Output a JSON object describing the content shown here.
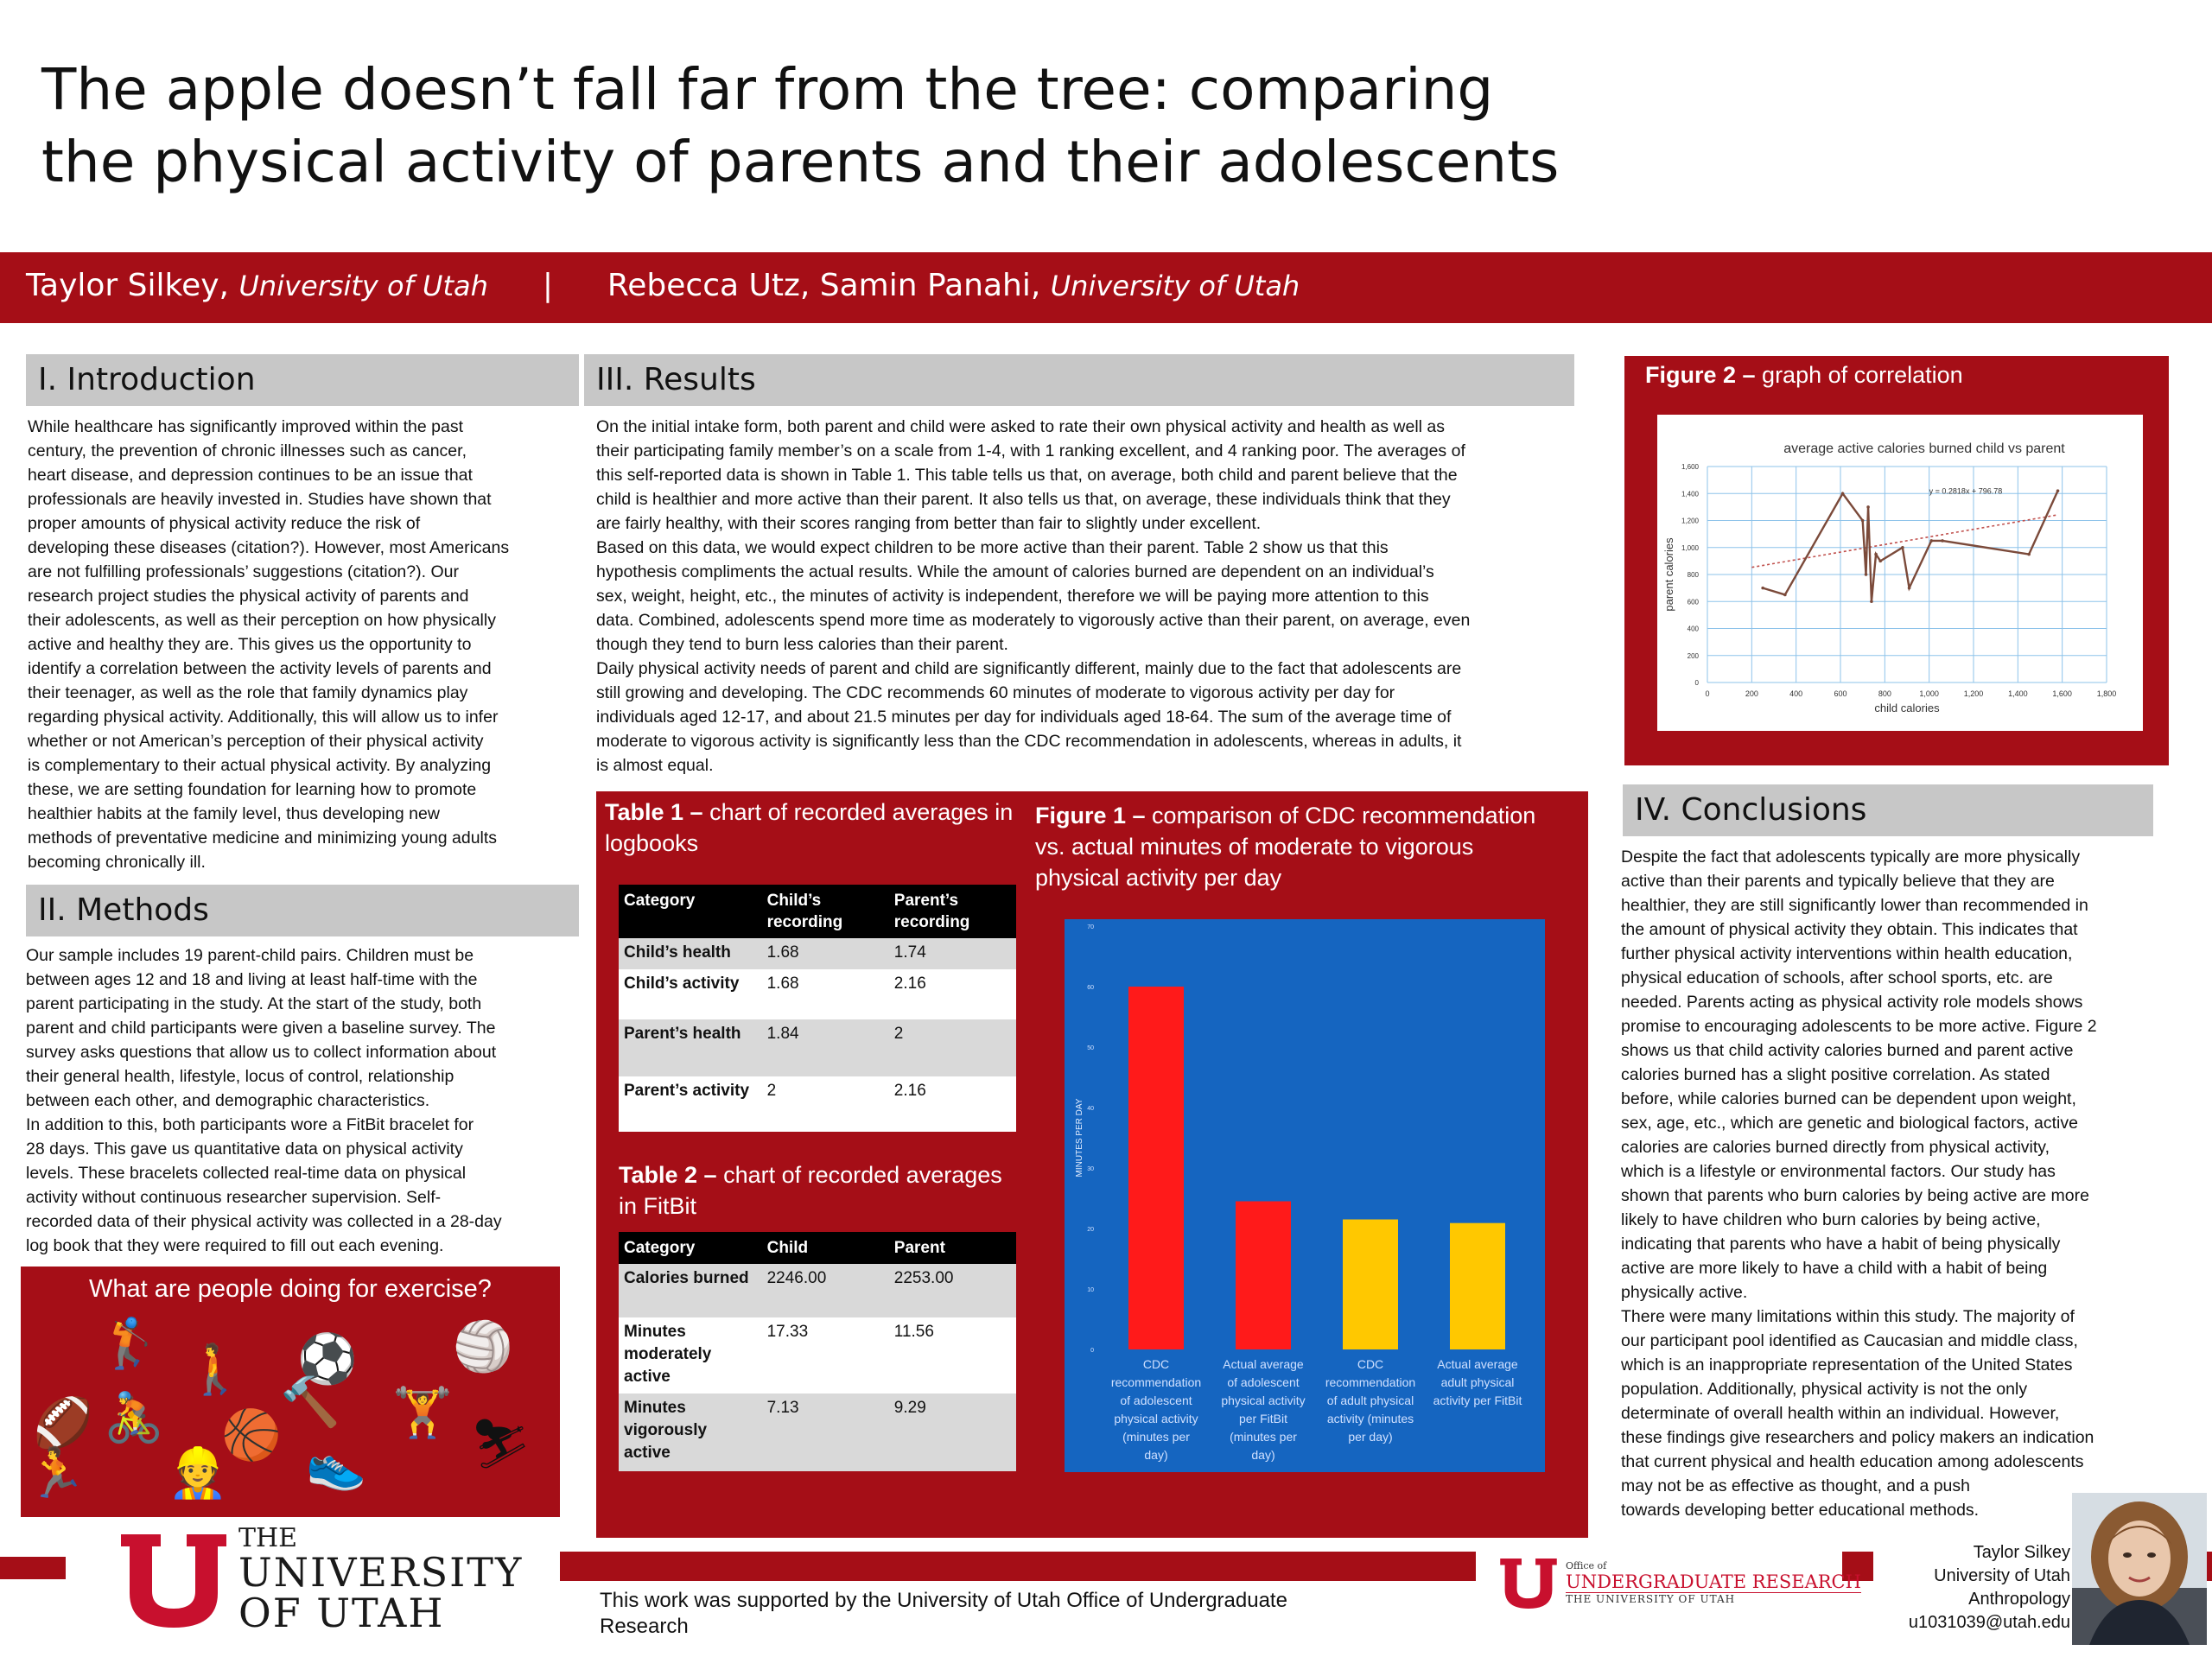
{
  "title": {
    "line1": "The apple doesn’t fall far from the tree: comparing",
    "line2": "the physical activity of parents and their adolescents"
  },
  "authors": {
    "author1_name": "Taylor Silkey,",
    "author1_affil": "University of Utah",
    "separator": "|",
    "author2_names": "Rebecca Utz, Samin Panahi,",
    "author2_affil": "University of Utah"
  },
  "introduction": {
    "heading": "I. Introduction",
    "lines": [
      "While healthcare has significantly improved within the past",
      "century, the prevention of chronic illnesses such as cancer,",
      "heart disease, and depression continues to be an issue that",
      "professionals are heavily invested in. Studies have shown that",
      "proper amounts of physical activity reduce the risk of",
      "developing these diseases (citation?). However, most Americans",
      "are not fulfilling professionals’ suggestions (citation?). Our",
      "research project studies the physical activity of parents and",
      "their adolescents, as well as their perception on how physically",
      "active and healthy they are. This gives us the opportunity to",
      "identify a correlation between the activity levels of parents and",
      "their teenager, as well as the role that family dynamics play",
      "regarding physical activity. Additionally, this will allow us to infer",
      "whether or not American’s perception of their physical activity",
      "is complementary to their actual physical activity. By analyzing",
      "these, we are setting foundation for learning how to promote",
      "healthier habits at the family level, thus developing new",
      "methods of preventative medicine and minimizing young adults",
      "becoming chronically ill."
    ]
  },
  "methods": {
    "heading": "II. Methods",
    "lines": [
      "Our sample includes 19 parent-child pairs. Children must be",
      "between ages 12 and 18 and living at least half-time with the",
      "parent participating in the study. At the start of the study, both",
      "parent and child participants were given a baseline survey. The",
      "survey asks questions that allow us to collect information about",
      "their general health, lifestyle, locus of control, relationship",
      "between each other, and demographic characteristics.",
      "In addition to this, both participants wore a FitBit bracelet for",
      "28 days. This gave us quantitative data on physical activity",
      "levels. These bracelets collected real-time data on physical",
      "activity without continuous researcher supervision. Self-",
      "recorded data of their physical activity was collected in a 28-day",
      "log book that they were required to fill out each evening."
    ]
  },
  "exercise_panel": {
    "title": "What are people doing for exercise?",
    "icons": [
      {
        "name": "football-icon",
        "glyph": "🏈"
      },
      {
        "name": "golfer-icon",
        "glyph": "🏌"
      },
      {
        "name": "walker-icon",
        "glyph": "🚶"
      },
      {
        "name": "soccer-ball-icon",
        "glyph": "⚽"
      },
      {
        "name": "volleyball-icon",
        "glyph": "🏐"
      },
      {
        "name": "cyclist-icon",
        "glyph": "🚴"
      },
      {
        "name": "basketball-icon",
        "glyph": "🏀"
      },
      {
        "name": "hammer-icon",
        "glyph": "🔨"
      },
      {
        "name": "weightlifter-icon",
        "glyph": "🏋"
      },
      {
        "name": "runner-icon",
        "glyph": "🏃"
      },
      {
        "name": "construction-worker-icon",
        "glyph": "👷"
      },
      {
        "name": "running-shoe-icon",
        "glyph": "👟"
      },
      {
        "name": "skier-icon",
        "glyph": "⛷"
      }
    ]
  },
  "results": {
    "heading": "III. Results",
    "lines": [
      "On the initial intake form, both parent and child were asked to rate their own physical activity and health as well as",
      "their participating family member’s on a scale from 1-4, with 1 ranking excellent, and 4 ranking poor. The averages of",
      "this self-reported data is shown in Table 1. This table tells us that, on average, both child and parent believe that the",
      "child is healthier and more active than their parent. It also tells us that, on average, these individuals think that they",
      "are fairly healthy, with their scores ranging from better than fair to slightly under excellent.",
      "Based on this data, we would expect children to be more active than their parent. Table 2 show us that this",
      "hypothesis compliments the actual results. While the amount of calories burned are dependent on an individual’s",
      "sex, weight, height, etc., the minutes of activity is independent, therefore we will be paying more attention to this",
      "data. Combined, adolescents spend more time as moderately to vigorously active than their parent, on average, even",
      "though they tend to burn less calories than their parent.",
      "Daily physical activity needs of parent and child are significantly different, mainly due to the fact that adolescents are",
      "still growing and developing. The CDC recommends 60 minutes of moderate to vigorous activity per day for",
      "individuals aged 12-17, and about 21.5 minutes per day for individuals aged 18-64. The sum of the average time of",
      "moderate to vigorous activity is significantly less than the CDC recommendation in adolescents, whereas in adults, it",
      "is almost equal."
    ]
  },
  "table1": {
    "title_bold": "Table 1 –",
    "title_rest": " chart of recorded averages in logbooks",
    "headers": [
      "Category",
      "Child’s recording",
      "Parent’s recording"
    ],
    "rows": [
      [
        "Child’s health",
        "1.68",
        "1.74"
      ],
      [
        "Child’s activity",
        "1.68",
        "2.16"
      ],
      [
        "Parent’s health",
        "1.84",
        "2"
      ],
      [
        "Parent’s activity",
        "2",
        "2.16"
      ]
    ]
  },
  "table2": {
    "title_bold": "Table 2 –",
    "title_rest": " chart of recorded averages in FitBit",
    "headers": [
      "Category",
      "Child",
      "Parent"
    ],
    "rows": [
      [
        "Calories burned",
        "2246.00",
        "2253.00"
      ],
      [
        "Minutes moderately active",
        "17.33",
        "11.56"
      ],
      [
        "Minutes vigorously active",
        "7.13",
        "9.29"
      ]
    ]
  },
  "figure1": {
    "title_bold": "Figure 1 –",
    "title_rest": " comparison of CDC recommendation vs. actual minutes of moderate to vigorous physical activity per day"
  },
  "figure2": {
    "title_bold": "Figure 2 –",
    "title_rest": " graph of correlation"
  },
  "chart_data": [
    {
      "type": "bar",
      "title": "",
      "ylabel": "MINUTES PER DAY",
      "xlabel": "",
      "ylim": [
        0,
        70
      ],
      "yticks": [
        0,
        10,
        20,
        30,
        40,
        50,
        60,
        70
      ],
      "grid": false,
      "categories": [
        "CDC recommendation of adolescent physical activity (minutes per day)",
        "Actual average of adolescent physical activity per FitBit (minutes per day)",
        "CDC recommendation of adult physical activity (minutes per day)",
        "Actual average adult physical activity per FitBit"
      ],
      "category_lines": [
        [
          "CDC",
          "recommendation",
          "of adolescent",
          "physical activity",
          "(minutes per",
          "day)"
        ],
        [
          "Actual average",
          "of adolescent",
          "physical activity",
          "per FitBit",
          "(minutes per",
          "day)"
        ],
        [
          "CDC",
          "recommendation",
          "of adult physical",
          "activity (minutes",
          "per day)"
        ],
        [
          "Actual average",
          "adult physical",
          "activity per FitBit"
        ]
      ],
      "values": [
        60,
        24.5,
        21.5,
        20.9
      ],
      "colors": [
        "#ff1a1a",
        "#ff1a1a",
        "#ffc800",
        "#ffc800"
      ],
      "background": "#1565c0"
    },
    {
      "type": "line",
      "title": "average active calories burned child vs parent",
      "xlabel": "child calories",
      "ylabel": "parent calories",
      "xlim": [
        0,
        1800
      ],
      "ylim": [
        0,
        1600
      ],
      "xticks": [
        0,
        200,
        400,
        600,
        800,
        1000,
        1200,
        1400,
        1600,
        1800
      ],
      "yticks": [
        0,
        200,
        400,
        600,
        800,
        1000,
        1200,
        1400,
        1600
      ],
      "x_tick_labels": [
        "0",
        "200",
        "400",
        "600",
        "800",
        "1,000",
        "1,200",
        "1,400",
        "1,600",
        "1,800"
      ],
      "y_tick_labels": [
        "0",
        "200",
        "400",
        "600",
        "800",
        "1,000",
        "1,200",
        "1,400",
        "1,600"
      ],
      "grid": true,
      "trendline_equation": "y = 0.2818x + 796.78",
      "trendline": {
        "slope": 0.2818,
        "intercept": 796.78
      },
      "series": [
        {
          "x": [
            250,
            350,
            610,
            700,
            715,
            725,
            740,
            760,
            780,
            880,
            910,
            1010,
            1060,
            1450,
            1580
          ],
          "y": [
            700,
            650,
            1400,
            1200,
            800,
            1300,
            600,
            950,
            900,
            1000,
            700,
            1050,
            1050,
            950,
            1420
          ],
          "color": "#7b4a3a"
        }
      ]
    }
  ],
  "conclusions": {
    "heading": "IV. Conclusions",
    "lines": [
      "Despite the fact that adolescents typically are more physically",
      "active than their parents and typically believe that they are",
      "healthier, they are still significantly lower than recommended in",
      "the amount of physical activity they obtain. This indicates that",
      "further physical activity interventions within health education,",
      "physical education of schools, after school sports, etc. are",
      "needed. Parents acting as physical activity role models shows",
      "promise to encouraging adolescents to be more active. Figure 2",
      "shows us that child activity calories burned and parent active",
      "calories burned has a slight positive correlation. As stated",
      "before, while calories burned can be dependent upon weight,",
      "sex, age, etc., which are genetic and biological factors, active",
      "calories are calories burned directly from physical activity,",
      "which is a lifestyle or environmental factors. Our study has",
      "shown that parents who burn calories by being active are more",
      "likely to have children who burn calories by being active,",
      "indicating that parents who have a habit of being physically",
      "active are more likely to have a child with a habit of being",
      "physically active.",
      "There were many limitations within this study. The majority of",
      "our participant pool identified as Caucasian and middle class,",
      "which is an inappropriate representation of the United States",
      "population. Additionally, physical activity is not the only",
      "determinate of overall health within an individual. However,",
      "these findings give researchers and policy makers an indication",
      "that current physical and health education among adolescents",
      "may not be as effective as thought, and a push",
      "towards developing better educational methods."
    ]
  },
  "footer": {
    "uofu_line1": "THE",
    "uofu_line2": "UNIVERSITY",
    "uofu_line3": "OF UTAH",
    "support_line1": "This work was supported by the University of Utah Office of Undergraduate",
    "support_line2": "Research",
    "our_office_of": "Office of",
    "our_name": "UNDERGRADUATE RESEARCH",
    "our_univ": "THE UNIVERSITY OF UTAH",
    "contact": [
      "Taylor Silkey",
      "University of Utah",
      "Anthropology",
      "u1031039@utah.edu"
    ]
  },
  "colors": {
    "brand_red": "#a50e17",
    "section_gray": "#c7c7c7",
    "chart_blue": "#1565c0",
    "bar_red": "#ff1a1a",
    "bar_yellow": "#ffc800"
  }
}
